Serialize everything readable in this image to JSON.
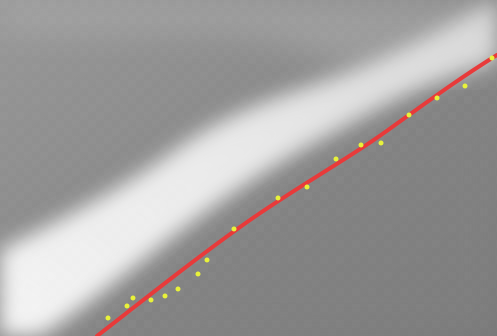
{
  "view": {
    "content": "zoomed-grayscale-image-with-fitted-line-and-points",
    "colors": {
      "fitted_line": "#e83a3a",
      "points": "#e8f23a",
      "bright_band": "#ffffff",
      "background_dark": "#7d7d7d",
      "background_mid": "#9a9a9a",
      "background_light": "#bdbdbd"
    }
  },
  "overlay": {
    "line": {
      "name": "fitted-edge-line"
    },
    "points_count_visible": 18
  }
}
